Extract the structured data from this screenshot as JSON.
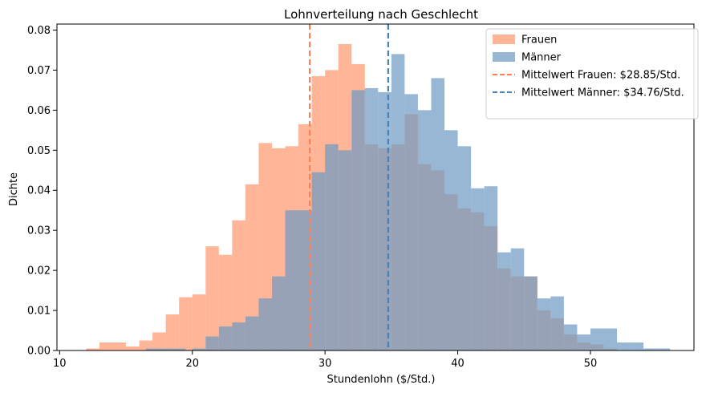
{
  "chart_data": {
    "type": "histogram",
    "title": "Lohnverteilung nach Geschlecht",
    "xlabel": "Stundenlohn ($/Std.)",
    "ylabel": "Dichte",
    "xlim": [
      9.8,
      57.8
    ],
    "ylim": [
      0,
      0.0815
    ],
    "xticks": [
      10,
      20,
      30,
      40,
      50
    ],
    "yticks": [
      0.0,
      0.01,
      0.02,
      0.03,
      0.04,
      0.05,
      0.06,
      0.07,
      0.08
    ],
    "ytick_labels": [
      "0.00",
      "0.01",
      "0.02",
      "0.03",
      "0.04",
      "0.05",
      "0.06",
      "0.07",
      "0.08"
    ],
    "grid": false,
    "legend_position": "upper right",
    "series": [
      {
        "name": "Frauen",
        "color": "#ffa07a",
        "opacity": 0.78,
        "bins": [
          {
            "x0": 12.0,
            "x1": 13.0,
            "y": 0.0005
          },
          {
            "x0": 13.0,
            "x1": 14.0,
            "y": 0.002
          },
          {
            "x0": 14.0,
            "x1": 15.0,
            "y": 0.002
          },
          {
            "x0": 15.0,
            "x1": 16.0,
            "y": 0.001
          },
          {
            "x0": 16.0,
            "x1": 17.0,
            "y": 0.0025
          },
          {
            "x0": 17.0,
            "x1": 18.0,
            "y": 0.0045
          },
          {
            "x0": 18.0,
            "x1": 19.0,
            "y": 0.009
          },
          {
            "x0": 19.0,
            "x1": 20.0,
            "y": 0.0133
          },
          {
            "x0": 20.0,
            "x1": 21.0,
            "y": 0.014
          },
          {
            "x0": 21.0,
            "x1": 22.0,
            "y": 0.026
          },
          {
            "x0": 22.0,
            "x1": 23.0,
            "y": 0.0239
          },
          {
            "x0": 23.0,
            "x1": 24.0,
            "y": 0.0325
          },
          {
            "x0": 24.0,
            "x1": 25.0,
            "y": 0.0415
          },
          {
            "x0": 25.0,
            "x1": 26.0,
            "y": 0.0518
          },
          {
            "x0": 26.0,
            "x1": 27.0,
            "y": 0.0505
          },
          {
            "x0": 27.0,
            "x1": 28.0,
            "y": 0.051
          },
          {
            "x0": 28.0,
            "x1": 29.0,
            "y": 0.0565
          },
          {
            "x0": 29.0,
            "x1": 30.0,
            "y": 0.0685
          },
          {
            "x0": 30.0,
            "x1": 31.0,
            "y": 0.07
          },
          {
            "x0": 31.0,
            "x1": 32.0,
            "y": 0.0765
          },
          {
            "x0": 32.0,
            "x1": 33.0,
            "y": 0.0715
          },
          {
            "x0": 33.0,
            "x1": 34.0,
            "y": 0.0515
          },
          {
            "x0": 34.0,
            "x1": 35.0,
            "y": 0.0505
          },
          {
            "x0": 35.0,
            "x1": 36.0,
            "y": 0.0515
          },
          {
            "x0": 36.0,
            "x1": 37.0,
            "y": 0.059
          },
          {
            "x0": 37.0,
            "x1": 38.0,
            "y": 0.0465
          },
          {
            "x0": 38.0,
            "x1": 39.0,
            "y": 0.045
          },
          {
            "x0": 39.0,
            "x1": 40.0,
            "y": 0.039
          },
          {
            "x0": 40.0,
            "x1": 41.0,
            "y": 0.0355
          },
          {
            "x0": 41.0,
            "x1": 42.0,
            "y": 0.0345
          },
          {
            "x0": 42.0,
            "x1": 43.0,
            "y": 0.031
          },
          {
            "x0": 43.0,
            "x1": 44.0,
            "y": 0.0205
          },
          {
            "x0": 44.0,
            "x1": 45.0,
            "y": 0.0185
          },
          {
            "x0": 45.0,
            "x1": 46.0,
            "y": 0.0185
          },
          {
            "x0": 46.0,
            "x1": 47.0,
            "y": 0.01
          },
          {
            "x0": 47.0,
            "x1": 48.0,
            "y": 0.008
          },
          {
            "x0": 48.0,
            "x1": 49.0,
            "y": 0.004
          },
          {
            "x0": 49.0,
            "x1": 50.0,
            "y": 0.002
          },
          {
            "x0": 50.0,
            "x1": 51.0,
            "y": 0.0015
          },
          {
            "x0": 51.0,
            "x1": 52.0,
            "y": 0.0005
          }
        ],
        "mean": 28.85,
        "mean_label": "Mittelwert Frauen: $28.85/Std.",
        "mean_color": "#ff7f50"
      },
      {
        "name": "Männer",
        "color": "#6f9bc4",
        "opacity": 0.72,
        "bins": [
          {
            "x0": 16.5,
            "x1": 17.5,
            "y": 0.0005
          },
          {
            "x0": 17.5,
            "x1": 18.5,
            "y": 0.0005
          },
          {
            "x0": 18.5,
            "x1": 19.5,
            "y": 0.0005
          },
          {
            "x0": 20.0,
            "x1": 21.0,
            "y": 0.0005
          },
          {
            "x0": 21.0,
            "x1": 22.0,
            "y": 0.0035
          },
          {
            "x0": 22.0,
            "x1": 23.0,
            "y": 0.006
          },
          {
            "x0": 23.0,
            "x1": 24.0,
            "y": 0.007
          },
          {
            "x0": 24.0,
            "x1": 25.0,
            "y": 0.0085
          },
          {
            "x0": 25.0,
            "x1": 26.0,
            "y": 0.013
          },
          {
            "x0": 26.0,
            "x1": 27.0,
            "y": 0.0185
          },
          {
            "x0": 27.0,
            "x1": 28.0,
            "y": 0.035
          },
          {
            "x0": 28.0,
            "x1": 29.0,
            "y": 0.035
          },
          {
            "x0": 29.0,
            "x1": 30.0,
            "y": 0.0445
          },
          {
            "x0": 30.0,
            "x1": 31.0,
            "y": 0.0515
          },
          {
            "x0": 31.0,
            "x1": 32.0,
            "y": 0.05
          },
          {
            "x0": 32.0,
            "x1": 33.0,
            "y": 0.065
          },
          {
            "x0": 33.0,
            "x1": 34.0,
            "y": 0.0655
          },
          {
            "x0": 34.0,
            "x1": 35.0,
            "y": 0.0645
          },
          {
            "x0": 35.0,
            "x1": 36.0,
            "y": 0.074
          },
          {
            "x0": 36.0,
            "x1": 37.0,
            "y": 0.064
          },
          {
            "x0": 37.0,
            "x1": 38.0,
            "y": 0.06
          },
          {
            "x0": 38.0,
            "x1": 39.0,
            "y": 0.068
          },
          {
            "x0": 39.0,
            "x1": 40.0,
            "y": 0.055
          },
          {
            "x0": 40.0,
            "x1": 41.0,
            "y": 0.051
          },
          {
            "x0": 41.0,
            "x1": 42.0,
            "y": 0.0405
          },
          {
            "x0": 42.0,
            "x1": 43.0,
            "y": 0.041
          },
          {
            "x0": 43.0,
            "x1": 44.0,
            "y": 0.0245
          },
          {
            "x0": 44.0,
            "x1": 45.0,
            "y": 0.0255
          },
          {
            "x0": 45.0,
            "x1": 46.0,
            "y": 0.0185
          },
          {
            "x0": 46.0,
            "x1": 47.0,
            "y": 0.013
          },
          {
            "x0": 47.0,
            "x1": 48.0,
            "y": 0.0135
          },
          {
            "x0": 48.0,
            "x1": 49.0,
            "y": 0.0065
          },
          {
            "x0": 49.0,
            "x1": 50.0,
            "y": 0.004
          },
          {
            "x0": 50.0,
            "x1": 51.0,
            "y": 0.0055
          },
          {
            "x0": 51.0,
            "x1": 52.0,
            "y": 0.0055
          },
          {
            "x0": 52.0,
            "x1": 53.0,
            "y": 0.002
          },
          {
            "x0": 53.0,
            "x1": 54.0,
            "y": 0.002
          },
          {
            "x0": 54.0,
            "x1": 55.0,
            "y": 0.0005
          },
          {
            "x0": 55.0,
            "x1": 56.0,
            "y": 0.0005
          }
        ],
        "mean": 34.76,
        "mean_label": "Mittelwert Männer: $34.76/Std.",
        "mean_color": "#4682b4"
      }
    ]
  }
}
